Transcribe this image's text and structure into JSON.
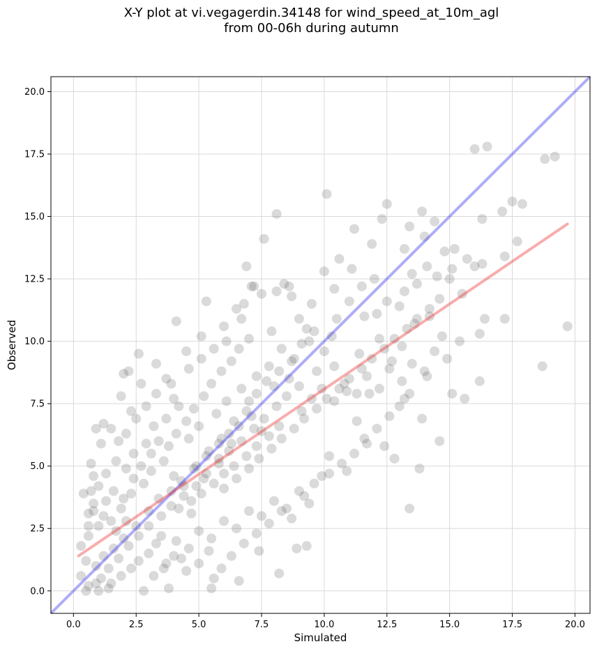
{
  "chart_data": {
    "type": "scatter",
    "title_line1": "X-Y plot at vi.vegagerdin.34148 for wind_speed_at_10m_agl",
    "title_line2": "from 00-06h during autumn",
    "xlabel": "Simulated",
    "ylabel": "Observed",
    "xlim": [
      -0.9,
      20.6
    ],
    "ylim": [
      -0.9,
      20.6
    ],
    "xticks": [
      "0.0",
      "2.5",
      "5.0",
      "7.5",
      "10.0",
      "12.5",
      "15.0",
      "17.5",
      "20.0"
    ],
    "yticks": [
      "0.0",
      "2.5",
      "5.0",
      "7.5",
      "10.0",
      "12.5",
      "15.0",
      "17.5",
      "20.0"
    ],
    "grid": true,
    "colors": {
      "points": "#555555",
      "one_to_one": "#3333ee",
      "regression": "#ee3333"
    },
    "one_to_one_line": {
      "x": [
        -0.9,
        20.6
      ],
      "y": [
        -0.9,
        20.6
      ]
    },
    "regression_line": {
      "x": [
        0.2,
        19.7
      ],
      "y": [
        1.4,
        14.7
      ]
    },
    "points": [
      [
        0.3,
        0.6
      ],
      [
        0.5,
        1.2
      ],
      [
        0.6,
        2.2
      ],
      [
        0.8,
        3.5
      ],
      [
        0.7,
        4.0
      ],
      [
        0.9,
        6.5
      ],
      [
        1.2,
        6.7
      ],
      [
        1.5,
        6.5
      ],
      [
        1.8,
        6.0
      ],
      [
        2.0,
        8.7
      ],
      [
        2.2,
        8.8
      ],
      [
        2.6,
        9.5
      ],
      [
        1.9,
        7.8
      ],
      [
        2.3,
        7.2
      ],
      [
        2.7,
        8.3
      ],
      [
        3.3,
        9.1
      ],
      [
        3.9,
        8.3
      ],
      [
        4.1,
        10.8
      ],
      [
        4.5,
        9.6
      ],
      [
        5.1,
        10.2
      ],
      [
        5.3,
        11.6
      ],
      [
        6.0,
        10.6
      ],
      [
        6.5,
        11.3
      ],
      [
        6.8,
        11.5
      ],
      [
        6.9,
        13.0
      ],
      [
        7.2,
        12.2
      ],
      [
        7.6,
        14.1
      ],
      [
        8.1,
        15.1
      ],
      [
        8.4,
        12.3
      ],
      [
        9.5,
        11.5
      ],
      [
        10.0,
        12.8
      ],
      [
        10.1,
        15.9
      ],
      [
        10.6,
        13.3
      ],
      [
        11.2,
        14.5
      ],
      [
        11.5,
        12.2
      ],
      [
        11.9,
        13.9
      ],
      [
        12.3,
        14.9
      ],
      [
        12.5,
        15.5
      ],
      [
        13.2,
        13.7
      ],
      [
        13.5,
        12.7
      ],
      [
        13.9,
        15.2
      ],
      [
        14.1,
        13.0
      ],
      [
        14.4,
        14.8
      ],
      [
        14.8,
        13.6
      ],
      [
        15.2,
        13.7
      ],
      [
        16.0,
        17.7
      ],
      [
        16.5,
        17.8
      ],
      [
        16.3,
        14.9
      ],
      [
        17.1,
        15.2
      ],
      [
        17.5,
        15.6
      ],
      [
        17.9,
        15.5
      ],
      [
        17.2,
        13.4
      ],
      [
        17.7,
        14.0
      ],
      [
        16.4,
        10.9
      ],
      [
        16.2,
        10.3
      ],
      [
        17.2,
        10.9
      ],
      [
        18.8,
        17.3
      ],
      [
        19.2,
        17.4
      ],
      [
        19.7,
        10.6
      ],
      [
        18.7,
        9.0
      ],
      [
        16.2,
        8.4
      ],
      [
        15.6,
        7.7
      ],
      [
        15.1,
        7.9
      ],
      [
        14.6,
        6.0
      ],
      [
        14.1,
        8.6
      ],
      [
        13.4,
        3.3
      ],
      [
        13.9,
        6.9
      ],
      [
        13.2,
        7.7
      ],
      [
        12.8,
        5.3
      ],
      [
        12.4,
        5.8
      ],
      [
        13.8,
        4.9
      ],
      [
        11.7,
        5.9
      ],
      [
        11.3,
        6.8
      ],
      [
        10.9,
        4.8
      ],
      [
        10.2,
        5.4
      ],
      [
        9.9,
        4.6
      ],
      [
        9.2,
        3.8
      ],
      [
        8.9,
        1.7
      ],
      [
        8.2,
        0.7
      ],
      [
        9.3,
        1.8
      ],
      [
        7.4,
        1.6
      ],
      [
        6.6,
        0.4
      ],
      [
        5.5,
        0.1
      ],
      [
        5.6,
        0.5
      ],
      [
        3.8,
        0.1
      ],
      [
        2.8,
        0.0
      ],
      [
        1.4,
        0.1
      ],
      [
        1.0,
        0.0
      ],
      [
        0.6,
        0.2
      ],
      [
        4.3,
        1.3
      ],
      [
        3.5,
        2.2
      ],
      [
        4.7,
        3.1
      ],
      [
        5.2,
        4.5
      ],
      [
        5.8,
        5.3
      ],
      [
        6.3,
        5.9
      ],
      [
        7.0,
        7.6
      ],
      [
        7.5,
        6.4
      ],
      [
        8.0,
        8.2
      ],
      [
        8.6,
        8.5
      ],
      [
        9.1,
        7.2
      ],
      [
        9.7,
        8.8
      ],
      [
        10.4,
        9.0
      ],
      [
        10.9,
        8.0
      ],
      [
        11.4,
        9.5
      ],
      [
        11.8,
        7.9
      ],
      [
        12.2,
        10.1
      ],
      [
        12.7,
        9.2
      ],
      [
        13.1,
        9.8
      ],
      [
        13.6,
        10.7
      ],
      [
        14.2,
        11.0
      ],
      [
        14.7,
        10.2
      ],
      [
        15.0,
        12.5
      ],
      [
        15.5,
        11.9
      ],
      [
        16.0,
        13.0
      ],
      [
        12.1,
        11.1
      ],
      [
        11.0,
        11.6
      ],
      [
        10.3,
        10.2
      ],
      [
        9.4,
        10.0
      ],
      [
        8.8,
        9.3
      ],
      [
        8.3,
        9.7
      ],
      [
        7.8,
        9.0
      ],
      [
        7.3,
        8.6
      ],
      [
        6.7,
        8.1
      ],
      [
        6.1,
        7.6
      ],
      [
        5.7,
        7.1
      ],
      [
        5.0,
        6.6
      ],
      [
        4.6,
        6.1
      ],
      [
        4.2,
        7.4
      ],
      [
        3.7,
        6.9
      ],
      [
        3.2,
        6.6
      ],
      [
        2.9,
        5.9
      ],
      [
        2.4,
        5.5
      ],
      [
        2.1,
        4.9
      ],
      [
        1.7,
        5.2
      ],
      [
        1.3,
        4.7
      ],
      [
        1.1,
        5.9
      ],
      [
        0.8,
        4.6
      ],
      [
        0.6,
        3.1
      ],
      [
        1.0,
        2.6
      ],
      [
        1.5,
        2.8
      ],
      [
        1.9,
        3.3
      ],
      [
        2.3,
        3.9
      ],
      [
        2.8,
        4.3
      ],
      [
        3.1,
        4.8
      ],
      [
        3.6,
        5.2
      ],
      [
        4.0,
        4.6
      ],
      [
        4.4,
        4.2
      ],
      [
        4.9,
        5.0
      ],
      [
        5.4,
        5.6
      ],
      [
        5.9,
        6.1
      ],
      [
        6.4,
        6.8
      ],
      [
        6.9,
        7.2
      ],
      [
        7.3,
        7.9
      ],
      [
        7.7,
        8.4
      ],
      [
        8.2,
        8.8
      ],
      [
        8.7,
        9.2
      ],
      [
        9.1,
        9.9
      ],
      [
        9.6,
        10.4
      ],
      [
        10.0,
        9.6
      ],
      [
        10.5,
        10.9
      ],
      [
        3.0,
        3.2
      ],
      [
        3.4,
        3.7
      ],
      [
        3.9,
        4.0
      ],
      [
        4.3,
        4.4
      ],
      [
        4.8,
        4.9
      ],
      [
        5.3,
        5.4
      ],
      [
        5.8,
        5.9
      ],
      [
        6.2,
        6.3
      ],
      [
        6.6,
        6.6
      ],
      [
        7.1,
        7.0
      ],
      [
        2.0,
        2.1
      ],
      [
        2.5,
        2.6
      ],
      [
        1.6,
        1.7
      ],
      [
        1.2,
        1.4
      ],
      [
        0.9,
        1.0
      ],
      [
        1.4,
        0.9
      ],
      [
        1.8,
        1.3
      ],
      [
        2.2,
        1.8
      ],
      [
        2.6,
        2.2
      ],
      [
        3.0,
        2.6
      ],
      [
        3.5,
        3.0
      ],
      [
        3.9,
        3.4
      ],
      [
        4.4,
        3.8
      ],
      [
        4.9,
        4.2
      ],
      [
        5.3,
        4.7
      ],
      [
        5.8,
        5.1
      ],
      [
        6.2,
        5.6
      ],
      [
        6.7,
        6.0
      ],
      [
        7.2,
        6.5
      ],
      [
        7.6,
        6.9
      ],
      [
        8.1,
        7.4
      ],
      [
        8.5,
        7.8
      ],
      [
        9.0,
        8.2
      ],
      [
        9.5,
        7.7
      ],
      [
        9.9,
        8.1
      ],
      [
        10.4,
        7.6
      ],
      [
        10.8,
        8.3
      ],
      [
        11.3,
        7.9
      ],
      [
        11.7,
        8.6
      ],
      [
        12.2,
        8.1
      ],
      [
        12.6,
        8.9
      ],
      [
        13.1,
        8.4
      ],
      [
        13.5,
        9.1
      ],
      [
        14.0,
        8.8
      ],
      [
        14.4,
        9.6
      ],
      [
        14.9,
        9.3
      ],
      [
        15.4,
        10.0
      ],
      [
        13.0,
        11.4
      ],
      [
        12.0,
        12.5
      ],
      [
        11.1,
        12.9
      ],
      [
        0.4,
        3.9
      ],
      [
        0.7,
        5.1
      ],
      [
        1.0,
        4.2
      ],
      [
        1.3,
        3.6
      ],
      [
        1.6,
        4.0
      ],
      [
        2.0,
        3.7
      ],
      [
        2.4,
        4.5
      ],
      [
        2.7,
        5.0
      ],
      [
        3.1,
        5.5
      ],
      [
        3.4,
        6.0
      ],
      [
        3.8,
        5.8
      ],
      [
        4.1,
        6.3
      ],
      [
        4.5,
        6.8
      ],
      [
        4.8,
        7.3
      ],
      [
        5.2,
        7.8
      ],
      [
        5.5,
        8.3
      ],
      [
        5.9,
        8.8
      ],
      [
        6.3,
        9.2
      ],
      [
        6.6,
        9.7
      ],
      [
        7.0,
        10.1
      ],
      [
        1.1,
        0.5
      ],
      [
        1.5,
        0.3
      ],
      [
        1.9,
        0.6
      ],
      [
        2.3,
        0.9
      ],
      [
        2.6,
        1.2
      ],
      [
        3.0,
        1.5
      ],
      [
        3.3,
        1.9
      ],
      [
        3.7,
        1.1
      ],
      [
        4.1,
        2.0
      ],
      [
        4.6,
        1.7
      ],
      [
        5.0,
        2.4
      ],
      [
        5.5,
        2.1
      ],
      [
        6.0,
        2.8
      ],
      [
        6.5,
        2.5
      ],
      [
        7.0,
        3.2
      ],
      [
        7.5,
        3.0
      ],
      [
        8.0,
        3.6
      ],
      [
        8.5,
        3.3
      ],
      [
        9.0,
        4.0
      ],
      [
        9.6,
        4.3
      ],
      [
        10.2,
        4.7
      ],
      [
        10.7,
        5.1
      ],
      [
        11.2,
        5.5
      ],
      [
        11.6,
        6.1
      ],
      [
        12.1,
        6.5
      ],
      [
        12.6,
        7.0
      ],
      [
        13.0,
        7.4
      ],
      [
        13.4,
        7.9
      ],
      [
        0.5,
        0.0
      ],
      [
        0.9,
        0.3
      ],
      [
        2.1,
        6.3
      ],
      [
        2.5,
        6.9
      ],
      [
        2.9,
        7.4
      ],
      [
        3.3,
        7.9
      ],
      [
        3.7,
        8.5
      ],
      [
        4.0,
        7.7
      ],
      [
        4.6,
        8.9
      ],
      [
        5.1,
        9.3
      ],
      [
        5.6,
        9.7
      ],
      [
        6.1,
        10.0
      ],
      [
        6.0,
        4.1
      ],
      [
        6.5,
        4.5
      ],
      [
        7.0,
        4.9
      ],
      [
        7.4,
        5.3
      ],
      [
        7.9,
        5.7
      ],
      [
        8.3,
        6.1
      ],
      [
        8.8,
        6.5
      ],
      [
        9.2,
        6.9
      ],
      [
        9.7,
        7.3
      ],
      [
        10.1,
        7.7
      ],
      [
        10.6,
        8.1
      ],
      [
        11.0,
        8.5
      ],
      [
        11.5,
        8.9
      ],
      [
        11.9,
        9.3
      ],
      [
        12.4,
        9.7
      ],
      [
        12.8,
        10.1
      ],
      [
        13.3,
        10.5
      ],
      [
        13.7,
        10.9
      ],
      [
        14.2,
        11.3
      ],
      [
        14.6,
        11.7
      ],
      [
        8.6,
        12.2
      ],
      [
        9.0,
        10.9
      ],
      [
        9.3,
        10.5
      ],
      [
        8.7,
        11.8
      ],
      [
        7.9,
        10.4
      ],
      [
        7.5,
        11.9
      ],
      [
        7.1,
        12.2
      ],
      [
        6.7,
        10.9
      ],
      [
        8.1,
        12.0
      ],
      [
        10.4,
        12.1
      ],
      [
        11.6,
        11.0
      ],
      [
        12.5,
        11.6
      ],
      [
        13.2,
        12.0
      ],
      [
        13.7,
        12.3
      ],
      [
        14.5,
        12.6
      ],
      [
        15.1,
        12.9
      ],
      [
        15.7,
        13.3
      ],
      [
        16.3,
        13.1
      ],
      [
        14.0,
        14.2
      ],
      [
        13.4,
        14.6
      ],
      [
        4.2,
        3.3
      ],
      [
        4.7,
        3.6
      ],
      [
        5.1,
        3.9
      ],
      [
        5.6,
        4.3
      ],
      [
        6.0,
        4.7
      ],
      [
        6.4,
        5.0
      ],
      [
        6.9,
        5.4
      ],
      [
        7.3,
        5.8
      ],
      [
        7.8,
        6.2
      ],
      [
        8.2,
        6.6
      ],
      [
        3.2,
        0.6
      ],
      [
        3.6,
        0.9
      ],
      [
        4.0,
        1.4
      ],
      [
        4.5,
        0.8
      ],
      [
        5.0,
        1.1
      ],
      [
        5.4,
        1.6
      ],
      [
        5.9,
        0.9
      ],
      [
        6.3,
        1.4
      ],
      [
        6.8,
        1.9
      ],
      [
        7.3,
        2.3
      ],
      [
        7.8,
        2.7
      ],
      [
        8.3,
        3.2
      ],
      [
        8.7,
        2.9
      ],
      [
        9.4,
        3.5
      ],
      [
        0.3,
        1.8
      ],
      [
        0.6,
        2.6
      ],
      [
        0.8,
        3.2
      ],
      [
        1.2,
        3.0
      ],
      [
        1.7,
        2.4
      ],
      [
        2.1,
        2.8
      ]
    ]
  }
}
